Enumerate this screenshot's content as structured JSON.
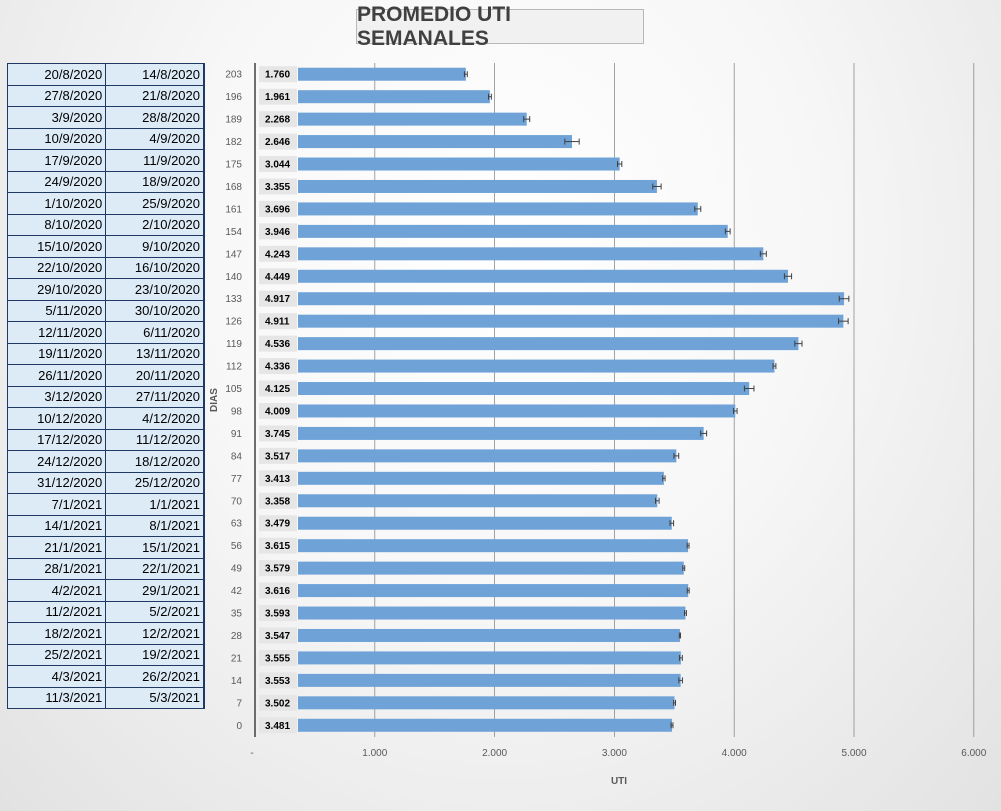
{
  "chart_data": {
    "type": "bar",
    "orientation": "horizontal",
    "title": "PROMEDIO UTI SEMANALES",
    "xlabel": "UTI",
    "ylabel": "DIAS",
    "xlim": [
      0,
      6000
    ],
    "x_ticks": [
      "-",
      "1.000",
      "2.000",
      "3.000",
      "4.000",
      "5.000",
      "6.000"
    ],
    "grid": "vertical",
    "error_bars": true,
    "bar_color": "#6fa3d8",
    "categories": [
      "203",
      "196",
      "189",
      "182",
      "175",
      "168",
      "161",
      "154",
      "147",
      "140",
      "133",
      "126",
      "119",
      "112",
      "105",
      "98",
      "91",
      "84",
      "77",
      "70",
      "63",
      "56",
      "49",
      "42",
      "35",
      "28",
      "21",
      "14",
      "7",
      "0"
    ],
    "values": [
      1760,
      1961,
      2268,
      2646,
      3044,
      3355,
      3696,
      3946,
      4243,
      4449,
      4917,
      4911,
      4536,
      4336,
      4125,
      4009,
      3745,
      3517,
      3413,
      3358,
      3479,
      3615,
      3579,
      3616,
      3593,
      3547,
      3555,
      3553,
      3502,
      3481
    ],
    "value_labels": [
      "1.760",
      "1.961",
      "2.268",
      "2.646",
      "3.044",
      "3.355",
      "3.696",
      "3.946",
      "4.243",
      "4.449",
      "4.917",
      "4.911",
      "4.536",
      "4.336",
      "4.125",
      "4.009",
      "3.745",
      "3.517",
      "3.413",
      "3.358",
      "3.479",
      "3.615",
      "3.579",
      "3.616",
      "3.593",
      "3.547",
      "3.555",
      "3.553",
      "3.502",
      "3.481"
    ],
    "errors": [
      12,
      12,
      25,
      60,
      18,
      35,
      25,
      20,
      25,
      30,
      40,
      40,
      30,
      12,
      40,
      15,
      25,
      20,
      10,
      15,
      15,
      8,
      8,
      8,
      8,
      5,
      12,
      15,
      8,
      8
    ]
  },
  "table": {
    "rows": [
      [
        "20/8/2020",
        "14/8/2020"
      ],
      [
        "27/8/2020",
        "21/8/2020"
      ],
      [
        "3/9/2020",
        "28/8/2020"
      ],
      [
        "10/9/2020",
        "4/9/2020"
      ],
      [
        "17/9/2020",
        "11/9/2020"
      ],
      [
        "24/9/2020",
        "18/9/2020"
      ],
      [
        "1/10/2020",
        "25/9/2020"
      ],
      [
        "8/10/2020",
        "2/10/2020"
      ],
      [
        "15/10/2020",
        "9/10/2020"
      ],
      [
        "22/10/2020",
        "16/10/2020"
      ],
      [
        "29/10/2020",
        "23/10/2020"
      ],
      [
        "5/11/2020",
        "30/10/2020"
      ],
      [
        "12/11/2020",
        "6/11/2020"
      ],
      [
        "19/11/2020",
        "13/11/2020"
      ],
      [
        "26/11/2020",
        "20/11/2020"
      ],
      [
        "3/12/2020",
        "27/11/2020"
      ],
      [
        "10/12/2020",
        "4/12/2020"
      ],
      [
        "17/12/2020",
        "11/12/2020"
      ],
      [
        "24/12/2020",
        "18/12/2020"
      ],
      [
        "31/12/2020",
        "25/12/2020"
      ],
      [
        "7/1/2021",
        "1/1/2021"
      ],
      [
        "14/1/2021",
        "8/1/2021"
      ],
      [
        "21/1/2021",
        "15/1/2021"
      ],
      [
        "28/1/2021",
        "22/1/2021"
      ],
      [
        "4/2/2021",
        "29/1/2021"
      ],
      [
        "11/2/2021",
        "5/2/2021"
      ],
      [
        "18/2/2021",
        "12/2/2021"
      ],
      [
        "25/2/2021",
        "19/2/2021"
      ],
      [
        "4/3/2021",
        "26/2/2021"
      ],
      [
        "11/3/2021",
        "5/3/2021"
      ]
    ]
  }
}
